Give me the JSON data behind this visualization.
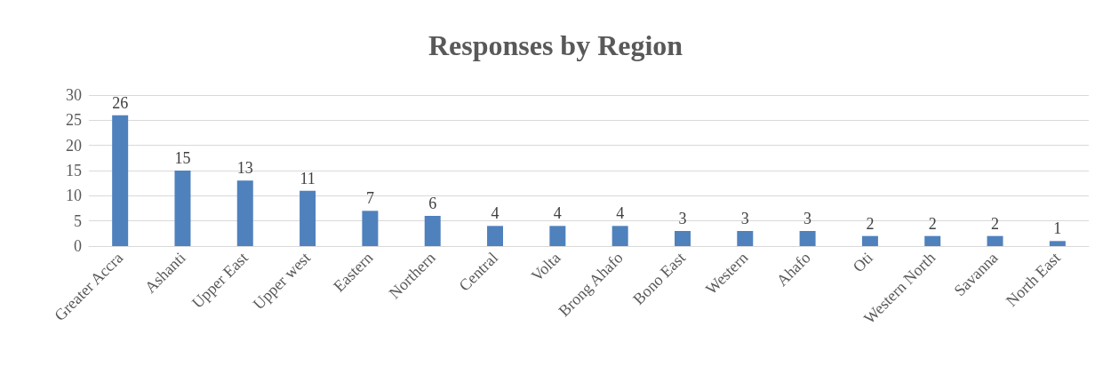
{
  "chart_data": {
    "type": "bar",
    "title": "Responses by Region",
    "categories": [
      "Greater Accra",
      "Ashanti",
      "Upper East",
      "Upper west",
      "Eastern",
      "Northern",
      "Central",
      "Volta",
      "Brong Ahafo",
      "Bono East",
      "Western",
      "Ahafo",
      "Oti",
      "Western North",
      "Savanna",
      "North East"
    ],
    "values": [
      26,
      15,
      13,
      11,
      7,
      6,
      4,
      4,
      4,
      3,
      3,
      3,
      2,
      2,
      2,
      1
    ],
    "color": "#4f81bd",
    "ylim": [
      0,
      30
    ],
    "yticks": [
      0,
      5,
      10,
      15,
      20,
      25,
      30
    ],
    "grid": "y",
    "data_labels": true
  }
}
